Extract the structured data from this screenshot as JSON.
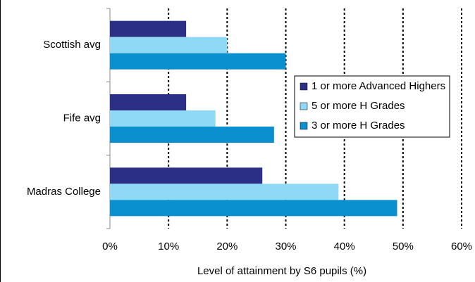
{
  "chart_data": {
    "type": "bar",
    "orientation": "horizontal",
    "x_label": "Level of attainment by S6 pupils (%)",
    "categories": [
      "Scottish avg",
      "Fife avg",
      "Madras College"
    ],
    "series": [
      {
        "name": "1 or more Advanced Highers",
        "color": "#2b2f86",
        "values": [
          13,
          13,
          26
        ]
      },
      {
        "name": "5 or more H Grades",
        "color": "#8fd8f6",
        "values": [
          20,
          18,
          39
        ]
      },
      {
        "name": "3 or more H Grades",
        "color": "#0a8fcf",
        "values": [
          30,
          28,
          49
        ]
      }
    ],
    "xlim": [
      0,
      60
    ],
    "xticks": [
      {
        "value": 0,
        "label": "0%"
      },
      {
        "value": 10,
        "label": "10%"
      },
      {
        "value": 20,
        "label": "20%"
      },
      {
        "value": 30,
        "label": "30%"
      },
      {
        "value": 40,
        "label": "40%"
      },
      {
        "value": 50,
        "label": "50%"
      },
      {
        "value": 60,
        "label": "60%"
      }
    ],
    "grid": true,
    "legend": "right"
  }
}
